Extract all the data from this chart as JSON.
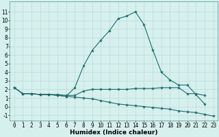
{
  "xlabel": "Humidex (Indice chaleur)",
  "background_color": "#d6f0ee",
  "grid_color": "#b8dbd9",
  "line_color": "#1a6b6b",
  "series": [
    {
      "x": [
        0,
        1,
        2,
        3,
        4,
        5,
        6,
        7,
        8,
        9,
        10,
        11,
        12,
        13,
        14,
        15,
        16,
        17,
        18,
        19,
        20,
        21,
        22
      ],
      "y": [
        2.2,
        1.5,
        1.5,
        1.4,
        1.4,
        1.3,
        1.2,
        2.2,
        4.7,
        6.5,
        7.7,
        8.8,
        10.2,
        10.5,
        11.0,
        9.5,
        6.6,
        4.0,
        3.1,
        2.5,
        2.5,
        1.4,
        0.3
      ]
    },
    {
      "x": [
        0,
        1,
        2,
        3,
        4,
        5,
        6,
        7,
        8,
        9,
        10,
        11,
        12,
        13,
        14,
        15,
        16,
        17,
        18,
        19,
        20,
        21,
        22
      ],
      "y": [
        2.2,
        1.5,
        1.5,
        1.4,
        1.4,
        1.4,
        1.3,
        1.3,
        1.8,
        2.0,
        2.0,
        2.0,
        2.0,
        2.0,
        2.1,
        2.1,
        2.1,
        2.2,
        2.2,
        2.2,
        1.5,
        1.5,
        1.3
      ]
    },
    {
      "x": [
        0,
        1,
        2,
        3,
        4,
        5,
        6,
        7,
        8,
        9,
        10,
        11,
        12,
        13,
        14,
        15,
        16,
        17,
        18,
        19,
        20,
        21,
        22,
        23
      ],
      "y": [
        2.2,
        1.5,
        1.5,
        1.4,
        1.4,
        1.3,
        1.2,
        1.1,
        1.0,
        0.9,
        0.7,
        0.5,
        0.3,
        0.2,
        0.1,
        0.0,
        -0.1,
        -0.2,
        -0.3,
        -0.5,
        -0.6,
        -0.7,
        -0.9,
        -1.1
      ]
    }
  ],
  "ylim": [
    -1.6,
    12.2
  ],
  "xlim": [
    -0.5,
    23.5
  ],
  "yticks": [
    -1,
    0,
    1,
    2,
    3,
    4,
    5,
    6,
    7,
    8,
    9,
    10,
    11
  ],
  "xticks": [
    0,
    1,
    2,
    3,
    4,
    5,
    6,
    7,
    8,
    9,
    10,
    11,
    12,
    13,
    14,
    15,
    16,
    17,
    18,
    19,
    20,
    21,
    22,
    23
  ],
  "marker": "*",
  "markersize": 3,
  "linewidth": 0.8,
  "tick_fontsize": 5.5,
  "xlabel_fontsize": 6.5
}
